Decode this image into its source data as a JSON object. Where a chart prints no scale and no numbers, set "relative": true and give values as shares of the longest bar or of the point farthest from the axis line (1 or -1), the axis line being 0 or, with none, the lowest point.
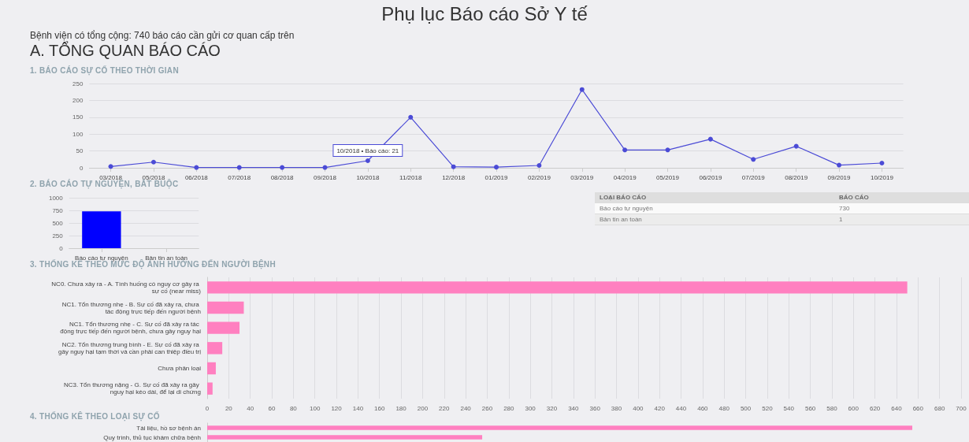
{
  "chart_data": [
    {
      "type": "other",
      "title": "Phụ lục Báo cáo Sở Y tế",
      "subtitle": "Bệnh viện có tổng cộng: 740 báo cáo cần gửi cơ quan cấp trên",
      "annotations": [
        "A. TỔNG QUAN BÁO CÁO"
      ]
    },
    {
      "type": "line",
      "title": "1. BÁO CÁO SỰ CỐ THEO THỜI GIAN",
      "categories": [
        "03/2018",
        "05/2018",
        "06/2018",
        "07/2018",
        "08/2018",
        "09/2018",
        "10/2018",
        "11/2018",
        "12/2018",
        "01/2019",
        "02/2019",
        "03/2019",
        "04/2019",
        "05/2019",
        "06/2019",
        "07/2019",
        "08/2019",
        "09/2019",
        "10/2019"
      ],
      "series": [
        {
          "color": "#4b4bd6",
          "values": [
            4,
            17,
            1,
            1,
            1,
            1,
            21,
            150,
            3,
            2,
            7,
            232,
            53,
            53,
            85,
            25,
            64,
            8,
            14
          ]
        }
      ],
      "ylim": [
        0,
        250
      ],
      "yticks": [
        0,
        50,
        100,
        150,
        200,
        250
      ],
      "grid": "y",
      "marker": "circle",
      "line_style": "solid",
      "annotations": [
        {
          "text": "10/2018 • Báo cáo: 21",
          "x": "10/2018",
          "y": 21
        }
      ]
    },
    {
      "type": "bar",
      "title": "2. BÁO CÁO TỰ NGUYỆN, BẮT BUỘC",
      "categories": [
        "Báo cáo tự nguyện",
        "Bản tin an toàn"
      ],
      "values": [
        730,
        null
      ],
      "color": "#0000ff",
      "ylim": [
        0,
        1000
      ],
      "yticks": [
        0,
        250,
        500,
        750,
        1000
      ],
      "grid": "y"
    },
    {
      "type": "other",
      "xlabel": "LOẠI BÁO CÁO",
      "ylabel": "BÁO CÁO",
      "categories": [
        "Báo cáo tự nguyện",
        "Bản tin an toàn"
      ],
      "values": [
        730,
        1
      ],
      "data_labels": true
    },
    {
      "type": "bar",
      "orientation": "horizontal",
      "title": "3. THỐNG KÊ THEO MỨC ĐỘ ẢNH HƯỞNG ĐẾN NGƯỜI BỆNH",
      "categories": [
        "NC0. Chưa xảy ra - A. Tình huống có nguy cơ gây ra sự cố (near miss)",
        "NC1. Tổn thương nhẹ - B. Sự cố đã xảy ra, chưa tác động trực tiếp đến người bệnh",
        "NC1. Tổn thương nhẹ - C. Sự cố đã xảy ra tác động trực tiếp đến người bệnh, chưa gây nguy hại",
        "NC2. Tổn thương trung bình - E. Sự cố đã xảy ra gây nguy hại tạm thời và cần phải can thiệp điều trị",
        "Chưa phân loại",
        "NC3. Tổn thương nặng - G. Sự cố đã xảy ra gây nguy hại kéo dài, để lại di chứng"
      ],
      "values": [
        650,
        34,
        30,
        14,
        8,
        5
      ],
      "color": "#ff80c0",
      "xlim": [
        0,
        700
      ],
      "xticks": [
        0,
        20,
        40,
        60,
        80,
        100,
        120,
        140,
        160,
        180,
        200,
        220,
        240,
        260,
        280,
        300,
        320,
        340,
        360,
        380,
        400,
        420,
        440,
        460,
        480,
        500,
        520,
        540,
        560,
        580,
        600,
        620,
        640,
        660,
        680,
        700
      ],
      "grid": "x"
    },
    {
      "type": "bar",
      "orientation": "horizontal",
      "relative": true,
      "title": "4. THỐNG KÊ THEO LOẠI SỰ CỐ",
      "categories": [
        "Tài liệu, hồ sơ bệnh án",
        "Quy trình, thủ tục khám chữa bệnh"
      ],
      "values": [
        1,
        0.39
      ],
      "color": "#ff80c0",
      "grid": "x"
    }
  ]
}
